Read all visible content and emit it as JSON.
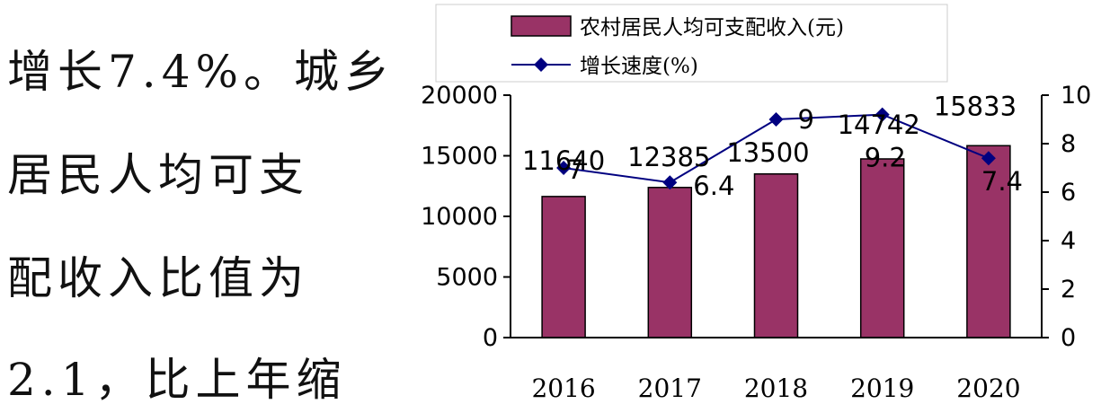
{
  "side_text": {
    "lines": [
      "增长7.4%。城乡",
      "居民人均可支",
      "配收入比值为",
      "2.1，比上年缩"
    ]
  },
  "chart_data": {
    "type": "bar",
    "categories": [
      "2016",
      "2017",
      "2018",
      "2019",
      "2020"
    ],
    "series": [
      {
        "name": "农村居民人均可支配收入(元)",
        "type": "bar",
        "axis": "left",
        "values": [
          11640,
          12385,
          13500,
          14742,
          15833
        ],
        "color": "#993366"
      },
      {
        "name": "增长速度(%)",
        "type": "line",
        "axis": "right",
        "values": [
          7,
          6.4,
          9,
          9.2,
          7.4
        ],
        "color": "#000080"
      }
    ],
    "bar_labels": [
      "11640",
      "12385",
      "13500",
      "14742",
      "15833"
    ],
    "line_labels": [
      "7",
      "6.4",
      "9",
      "9.2",
      "7.4"
    ],
    "ylim": [
      0,
      20000
    ],
    "yticks": [
      "0",
      "5000",
      "10000",
      "15000",
      "20000"
    ],
    "y2lim": [
      0,
      10
    ],
    "y2ticks": [
      "0",
      "2",
      "4",
      "6",
      "8",
      "10"
    ],
    "legend_position": "top",
    "grid": false
  }
}
